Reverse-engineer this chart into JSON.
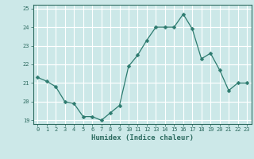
{
  "x": [
    0,
    1,
    2,
    3,
    4,
    5,
    6,
    7,
    8,
    9,
    10,
    11,
    12,
    13,
    14,
    15,
    16,
    17,
    18,
    19,
    20,
    21,
    22,
    23
  ],
  "y": [
    21.3,
    21.1,
    20.8,
    20.0,
    19.9,
    19.2,
    19.2,
    19.0,
    19.4,
    19.8,
    21.9,
    22.5,
    23.3,
    24.0,
    24.0,
    24.0,
    24.7,
    23.9,
    22.3,
    22.6,
    21.7,
    20.6,
    21.0,
    21.0
  ],
  "line_color": "#2d7b6f",
  "marker": "D",
  "marker_size": 2.5,
  "bg_color": "#cce8e8",
  "grid_color_major": "#ffffff",
  "grid_color_minor": "#b8d8d8",
  "xlabel": "Humidex (Indice chaleur)",
  "xlim": [
    -0.5,
    23.5
  ],
  "ylim": [
    18.8,
    25.2
  ],
  "yticks": [
    19,
    20,
    21,
    22,
    23,
    24,
    25
  ],
  "xticks": [
    0,
    1,
    2,
    3,
    4,
    5,
    6,
    7,
    8,
    9,
    10,
    11,
    12,
    13,
    14,
    15,
    16,
    17,
    18,
    19,
    20,
    21,
    22,
    23
  ],
  "tick_color": "#2d6b60",
  "label_color": "#2d6b60",
  "spine_color": "#2d6b60"
}
